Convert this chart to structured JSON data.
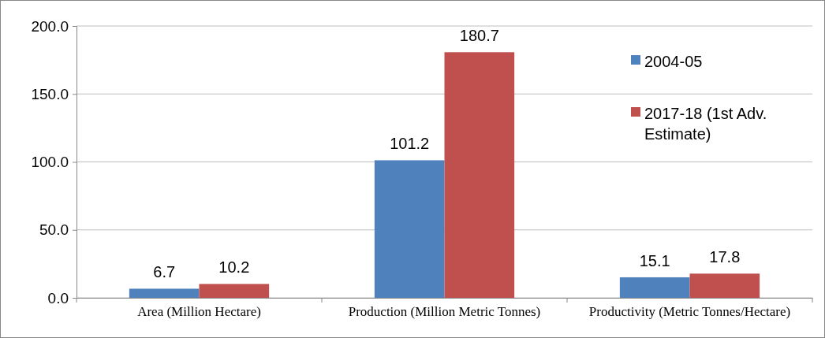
{
  "chart_data": {
    "type": "bar",
    "categories": [
      "Area (Million Hectare)",
      "Production (Million Metric Tonnes)",
      "Productivity (Metric Tonnes/Hectare)"
    ],
    "series": [
      {
        "name": "2004-05",
        "color": "#4f81bd",
        "values": [
          6.7,
          101.2,
          15.1
        ]
      },
      {
        "name": "2017-18 (1st Adv. Estimate)",
        "color": "#c0504d",
        "values": [
          10.2,
          180.7,
          17.8
        ]
      }
    ],
    "ylim": [
      0,
      200
    ],
    "yticks": [
      {
        "value": 0,
        "label": "0.0"
      },
      {
        "value": 50,
        "label": "50.0"
      },
      {
        "value": 100,
        "label": "100.0"
      },
      {
        "value": 150,
        "label": "150.0"
      },
      {
        "value": 200,
        "label": "200.0"
      }
    ],
    "grid": "y",
    "legend": "top right",
    "data_labels": true
  }
}
